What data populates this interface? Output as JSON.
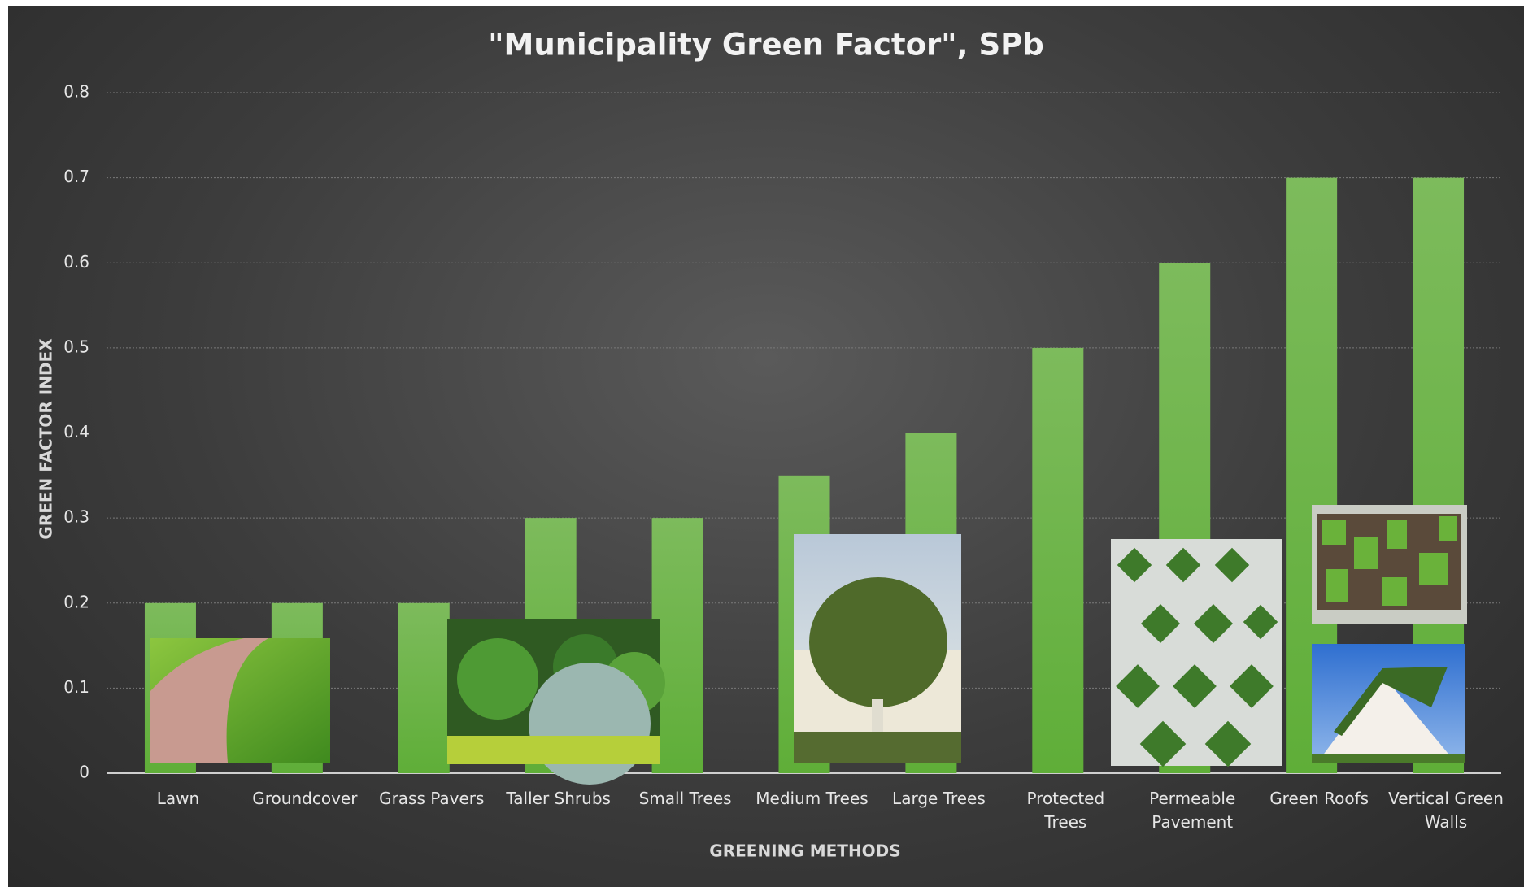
{
  "chart_data": {
    "type": "bar",
    "title": "\"Municipality Green Factor\", SPb",
    "x_label": "GREENING METHODS",
    "y_label": "GREEN FACTOR INDEX",
    "categories": [
      "Lawn",
      "Groundcover",
      "Grass Pavers",
      "Taller Shrubs",
      "Small Trees",
      "Medium Trees",
      "Large Trees",
      "Protected Trees",
      "Permeable Pavement",
      "Green Roofs",
      "Vertical Green Walls"
    ],
    "values": [
      0.2,
      0.2,
      0.2,
      0.3,
      0.3,
      0.35,
      0.4,
      0.5,
      0.6,
      0.7,
      0.7
    ],
    "color": "#6db446",
    "ylim": [
      0,
      0.8
    ],
    "yticks": [
      0,
      0.1,
      0.2,
      0.3,
      0.4,
      0.5,
      0.6,
      0.7,
      0.8
    ],
    "grid": true
  }
}
